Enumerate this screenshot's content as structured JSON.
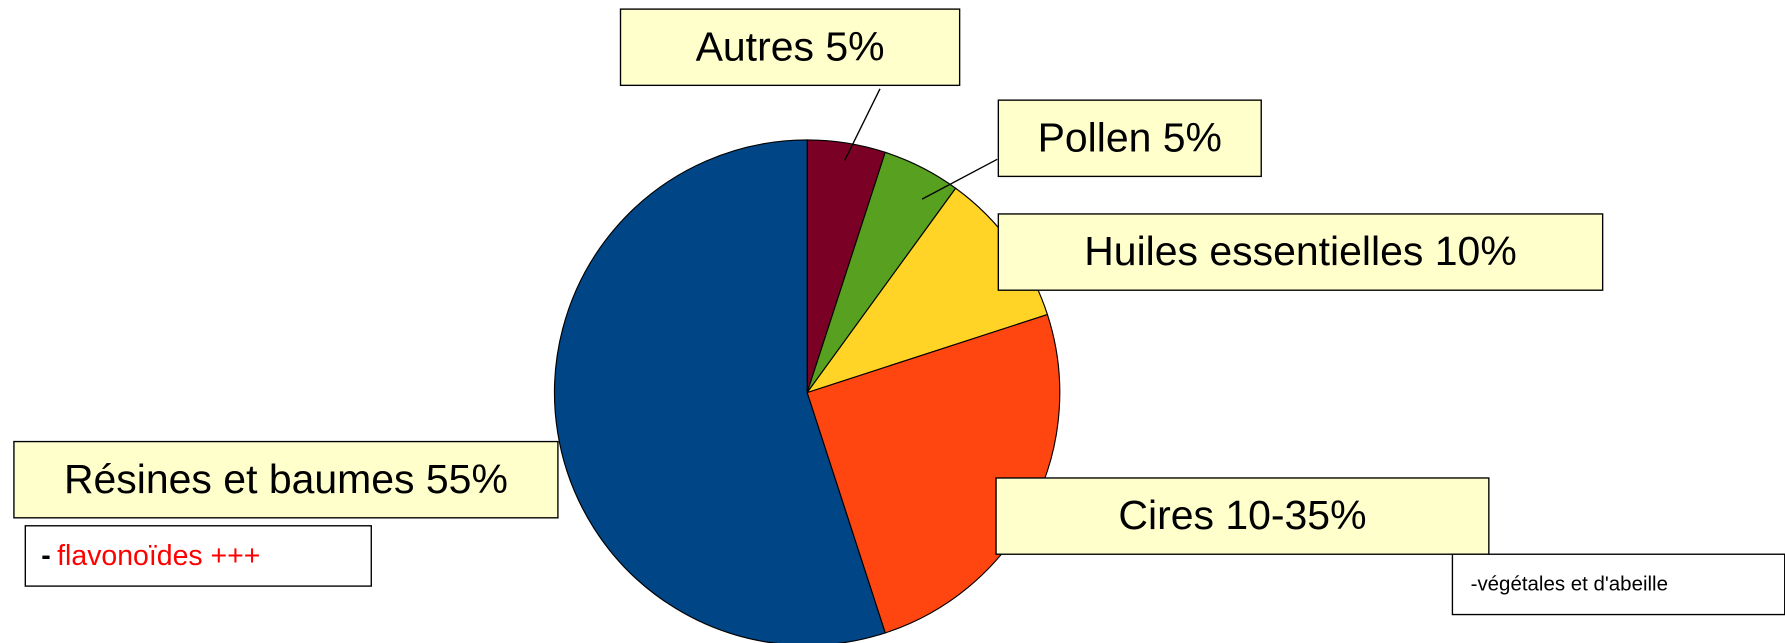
{
  "chart_data": {
    "type": "pie",
    "categories": [
      "Autres 5%",
      "Pollen 5%",
      "Huiles essentielles 10%",
      "Cires 10-35%",
      "Résines et baumes 55%"
    ],
    "values": [
      5,
      5,
      10,
      25,
      55
    ],
    "colors": [
      "#7a0026",
      "#58a01f",
      "#ffd426",
      "#ff4510",
      "#004586"
    ],
    "annotations": [
      {
        "prefix": "-",
        "text": "flavonoïdes +++"
      },
      {
        "text": "-végétales et d'abeille"
      }
    ]
  }
}
